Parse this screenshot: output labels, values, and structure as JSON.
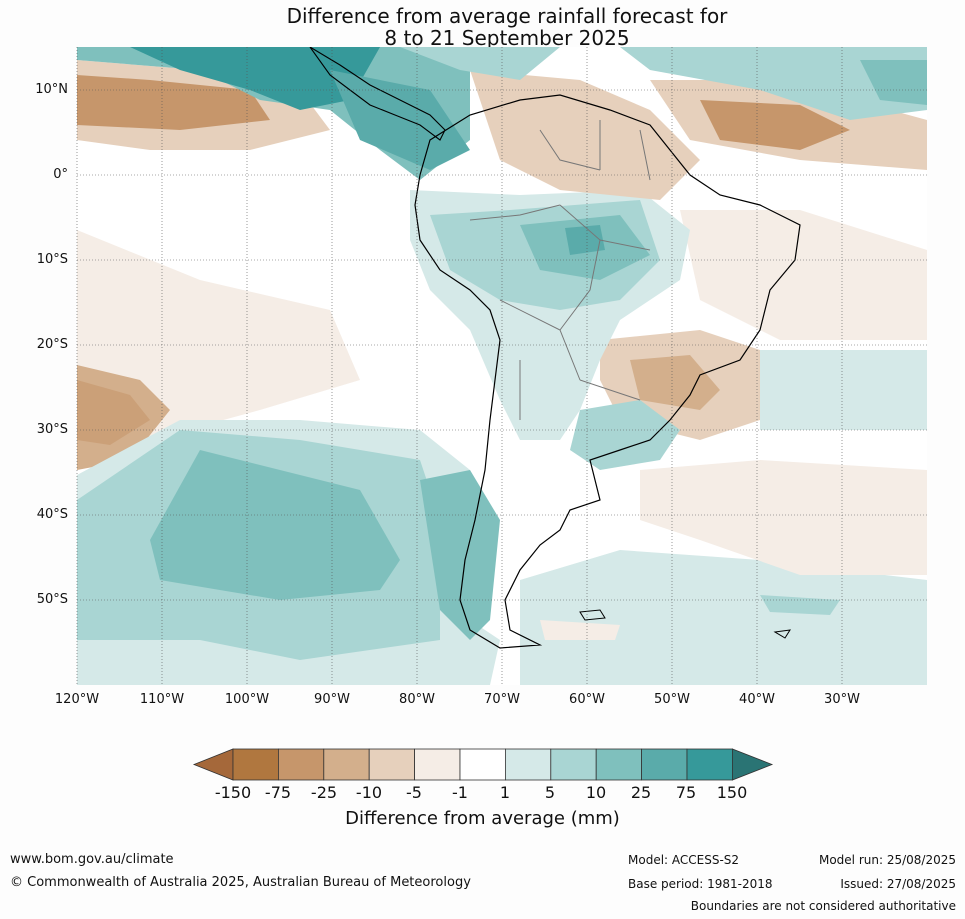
{
  "title": {
    "line1": "Difference from average rainfall forecast for",
    "line2": "8 to 21 September 2025"
  },
  "axes": {
    "lat_labels": [
      "10°N",
      "0°",
      "10°S",
      "20°S",
      "30°S",
      "40°S",
      "50°S"
    ],
    "lon_labels": [
      "120°W",
      "110°W",
      "100°W",
      "90°W",
      "80°W",
      "70°W",
      "60°W",
      "50°W",
      "40°W",
      "30°W"
    ]
  },
  "colorbar": {
    "title": "Difference from average (mm)",
    "tick_labels": [
      "-150",
      "-75",
      "-25",
      "-10",
      "-5",
      "-1",
      "1",
      "5",
      "10",
      "25",
      "75",
      "150"
    ],
    "colors": [
      "#a5683a",
      "#b0773f",
      "#c6966b",
      "#d3af8c",
      "#e6d0bc",
      "#f5ede6",
      "#ffffff",
      "#d5e9e8",
      "#a9d5d3",
      "#7fc0bd",
      "#5aabaa",
      "#36999a",
      "#2a7474"
    ]
  },
  "footer": {
    "website": "www.bom.gov.au/climate",
    "copyright": "© Commonwealth of Australia 2025, Australian Bureau of Meteorology",
    "model": "Model: ACCESS-S2",
    "base_period": "Base period: 1981-2018",
    "model_run": "Model run: 25/08/2025",
    "issued": "Issued: 27/08/2025",
    "disclaimer": "Boundaries are not considered authoritative"
  }
}
